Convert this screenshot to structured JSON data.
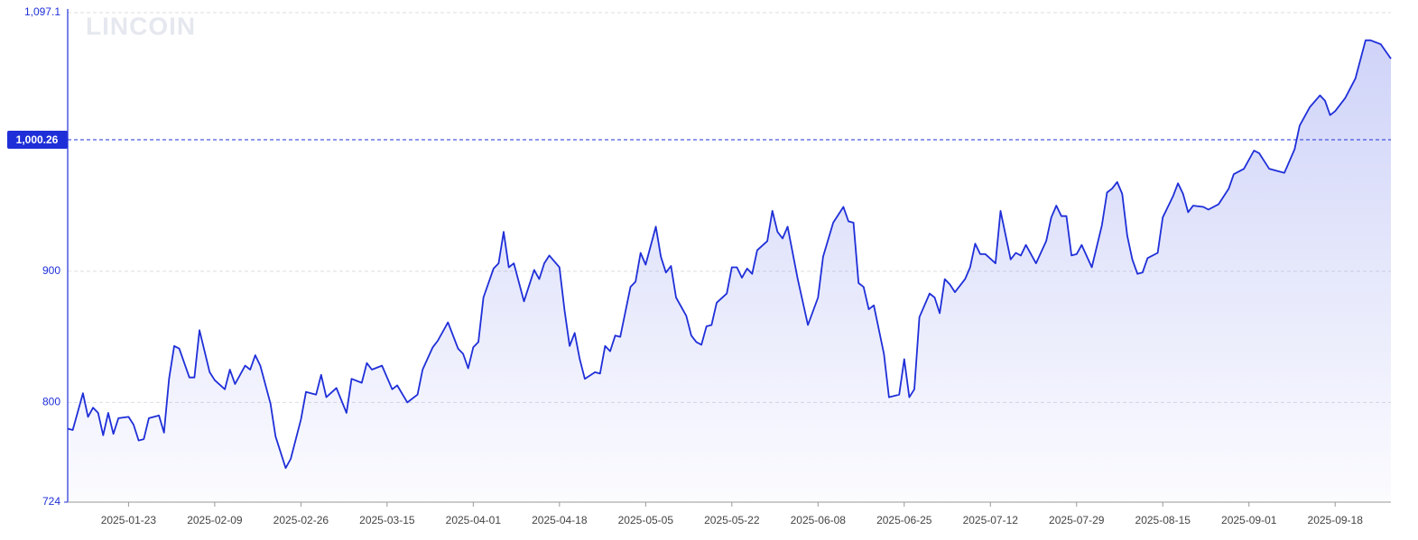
{
  "chart_data": {
    "type": "area",
    "watermark": "LINCOIN",
    "color": "#1f2fd8",
    "fill": "#5563e6",
    "xlim": [
      "2025-01-11",
      "2025-09-29"
    ],
    "xticks": [
      "2025-01-23",
      "2025-02-09",
      "2025-02-26",
      "2025-03-15",
      "2025-04-01",
      "2025-04-18",
      "2025-05-05",
      "2025-05-22",
      "2025-06-08",
      "2025-06-25",
      "2025-07-12",
      "2025-07-29",
      "2025-08-15",
      "2025-09-01",
      "2025-09-18"
    ],
    "ylim": [
      724,
      1097.1
    ],
    "yticks": [
      724,
      800,
      900,
      {
        "value": 1097.1,
        "label": "1,097.1"
      }
    ],
    "grid": true,
    "price_line": {
      "value": 1000.26,
      "label": "1,000.26"
    },
    "x": [
      "2025-01-11",
      "2025-01-12",
      "2025-01-14",
      "2025-01-15",
      "2025-01-16",
      "2025-01-17",
      "2025-01-18",
      "2025-01-19",
      "2025-01-20",
      "2025-01-21",
      "2025-01-23",
      "2025-01-24",
      "2025-01-25",
      "2025-01-26",
      "2025-01-27",
      "2025-01-29",
      "2025-01-30",
      "2025-01-31",
      "2025-02-01",
      "2025-02-02",
      "2025-02-04",
      "2025-02-05",
      "2025-02-06",
      "2025-02-08",
      "2025-02-09",
      "2025-02-11",
      "2025-02-12",
      "2025-02-13",
      "2025-02-15",
      "2025-02-16",
      "2025-02-17",
      "2025-02-18",
      "2025-02-20",
      "2025-02-21",
      "2025-02-23",
      "2025-02-24",
      "2025-02-26",
      "2025-02-27",
      "2025-03-01",
      "2025-03-02",
      "2025-03-03",
      "2025-03-05",
      "2025-03-07",
      "2025-03-08",
      "2025-03-10",
      "2025-03-11",
      "2025-03-12",
      "2025-03-14",
      "2025-03-16",
      "2025-03-17",
      "2025-03-19",
      "2025-03-21",
      "2025-03-22",
      "2025-03-24",
      "2025-03-25",
      "2025-03-27",
      "2025-03-29",
      "2025-03-30",
      "2025-03-31",
      "2025-04-01",
      "2025-04-02",
      "2025-04-03",
      "2025-04-05",
      "2025-04-06",
      "2025-04-07",
      "2025-04-08",
      "2025-04-09",
      "2025-04-11",
      "2025-04-13",
      "2025-04-14",
      "2025-04-15",
      "2025-04-16",
      "2025-04-18",
      "2025-04-19",
      "2025-04-20",
      "2025-04-21",
      "2025-04-22",
      "2025-04-23",
      "2025-04-25",
      "2025-04-26",
      "2025-04-27",
      "2025-04-28",
      "2025-04-29",
      "2025-04-30",
      "2025-05-02",
      "2025-05-03",
      "2025-05-04",
      "2025-05-05",
      "2025-05-07",
      "2025-05-08",
      "2025-05-09",
      "2025-05-10",
      "2025-05-11",
      "2025-05-13",
      "2025-05-14",
      "2025-05-15",
      "2025-05-16",
      "2025-05-17",
      "2025-05-18",
      "2025-05-19",
      "2025-05-21",
      "2025-05-22",
      "2025-05-23",
      "2025-05-24",
      "2025-05-25",
      "2025-05-26",
      "2025-05-27",
      "2025-05-29",
      "2025-05-30",
      "2025-05-31",
      "2025-06-01",
      "2025-06-02",
      "2025-06-04",
      "2025-06-06",
      "2025-06-08",
      "2025-06-09",
      "2025-06-11",
      "2025-06-13",
      "2025-06-14",
      "2025-06-15",
      "2025-06-16",
      "2025-06-17",
      "2025-06-18",
      "2025-06-19",
      "2025-06-21",
      "2025-06-22",
      "2025-06-24",
      "2025-06-25",
      "2025-06-26",
      "2025-06-27",
      "2025-06-28",
      "2025-06-30",
      "2025-07-01",
      "2025-07-02",
      "2025-07-03",
      "2025-07-04",
      "2025-07-05",
      "2025-07-07",
      "2025-07-08",
      "2025-07-09",
      "2025-07-10",
      "2025-07-11",
      "2025-07-13",
      "2025-07-14",
      "2025-07-16",
      "2025-07-17",
      "2025-07-18",
      "2025-07-19",
      "2025-07-21",
      "2025-07-23",
      "2025-07-24",
      "2025-07-25",
      "2025-07-26",
      "2025-07-27",
      "2025-07-28",
      "2025-07-29",
      "2025-07-30",
      "2025-08-01",
      "2025-08-03",
      "2025-08-04",
      "2025-08-05",
      "2025-08-06",
      "2025-08-07",
      "2025-08-08",
      "2025-08-09",
      "2025-08-10",
      "2025-08-11",
      "2025-08-12",
      "2025-08-14",
      "2025-08-15",
      "2025-08-17",
      "2025-08-18",
      "2025-08-19",
      "2025-08-20",
      "2025-08-21",
      "2025-08-23",
      "2025-08-24",
      "2025-08-26",
      "2025-08-28",
      "2025-08-29",
      "2025-08-31",
      "2025-09-02",
      "2025-09-03",
      "2025-09-05",
      "2025-09-06",
      "2025-09-08",
      "2025-09-10",
      "2025-09-11",
      "2025-09-13",
      "2025-09-15",
      "2025-09-16",
      "2025-09-17",
      "2025-09-18",
      "2025-09-20",
      "2025-09-22",
      "2025-09-24",
      "2025-09-25",
      "2025-09-27",
      "2025-09-29"
    ],
    "values": [
      780,
      779,
      807,
      789,
      796,
      792,
      775,
      792,
      776,
      788,
      789,
      783,
      771,
      772,
      788,
      790,
      777,
      818,
      843,
      841,
      819,
      819,
      855,
      823,
      817,
      810,
      825,
      814,
      828,
      825,
      836,
      828,
      799,
      774,
      750,
      757,
      787,
      808,
      806,
      821,
      804,
      811,
      792,
      818,
      815,
      830,
      825,
      828,
      810,
      813,
      800,
      806,
      825,
      842,
      847,
      861,
      841,
      837,
      826,
      842,
      846,
      880,
      902,
      906,
      930,
      903,
      906,
      877,
      901,
      894,
      906,
      912,
      903,
      870,
      843,
      853,
      833,
      818,
      823,
      822,
      843,
      839,
      851,
      850,
      888,
      892,
      914,
      905,
      934,
      911,
      899,
      904,
      880,
      866,
      851,
      846,
      844,
      858,
      859,
      876,
      883,
      903,
      903,
      895,
      902,
      898,
      916,
      923,
      946,
      930,
      925,
      934,
      894,
      859,
      880,
      911,
      937,
      949,
      938,
      937,
      891,
      888,
      871,
      874,
      837,
      804,
      806,
      833,
      804,
      810,
      865,
      883,
      880,
      868,
      894,
      890,
      884,
      894,
      903,
      921,
      913,
      913,
      906,
      946,
      909,
      914,
      912,
      920,
      906,
      923,
      941,
      950,
      942,
      942,
      912,
      913,
      920,
      903,
      935,
      960,
      963,
      968,
      959,
      927,
      909,
      898,
      899,
      910,
      914,
      941,
      957,
      967,
      959,
      945,
      950,
      949,
      947,
      951,
      963,
      974,
      978,
      992,
      990,
      978,
      977,
      975,
      993,
      1011,
      1025,
      1034,
      1030,
      1019,
      1022,
      1032,
      1047,
      1076,
      1076,
      1073,
      1062
    ]
  }
}
